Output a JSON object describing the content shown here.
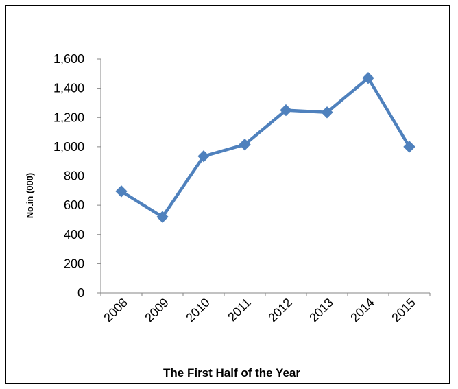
{
  "chart_data": {
    "type": "line",
    "title": "",
    "xlabel": "The First Half of the Year",
    "ylabel": "No.in (000)",
    "categories": [
      "2008",
      "2009",
      "2010",
      "2011",
      "2012",
      "2013",
      "2014",
      "2015"
    ],
    "series": [
      {
        "values": [
          695,
          520,
          935,
          1015,
          1250,
          1235,
          1470,
          1000
        ]
      }
    ],
    "ylim": [
      0,
      1600
    ],
    "yticks": [
      "0",
      "200",
      "400",
      "600",
      "800",
      "1,000",
      "1,200",
      "1,400",
      "1,600"
    ],
    "grid": false,
    "legend": "none",
    "marker": "diamond",
    "colors": {
      "series": "#4F81BD",
      "axis": "#868686"
    }
  }
}
